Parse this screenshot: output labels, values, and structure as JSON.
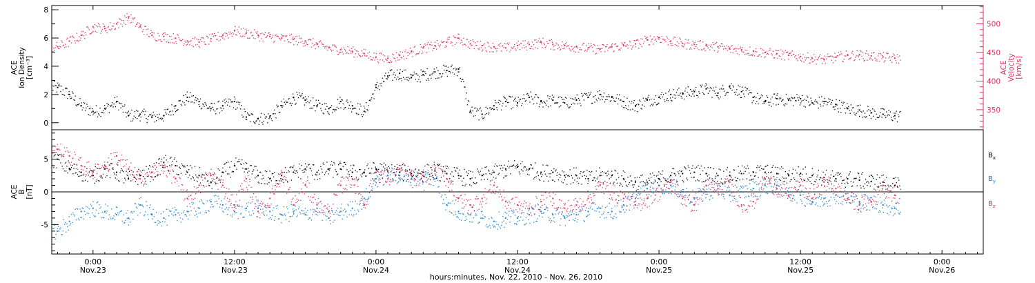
{
  "chart_data": {
    "type": "scatter",
    "xlabel": "hours:minutes, Nov. 22, 2010 - Nov. 26, 2010",
    "x_range_hours": [
      -3.5,
      75.5
    ],
    "x_ticks": [
      {
        "hour": 0,
        "time": "0:00",
        "date": "Nov.23"
      },
      {
        "hour": 12,
        "time": "12:00",
        "date": "Nov.23"
      },
      {
        "hour": 24,
        "time": "0:00",
        "date": "Nov.24"
      },
      {
        "hour": 36,
        "time": "12:00",
        "date": "Nov.24"
      },
      {
        "hour": 48,
        "time": "0:00",
        "date": "Nov.25"
      },
      {
        "hour": 60,
        "time": "12:00",
        "date": "Nov.25"
      },
      {
        "hour": 72,
        "time": "0:00",
        "date": "Nov.26"
      }
    ],
    "data_end_hour": 68.5,
    "panels": [
      {
        "name": "plasma",
        "left_axis": {
          "label_lines": [
            "ACE",
            "Ion Density",
            "[cm⁻³]"
          ],
          "ylim": [
            -0.5,
            8.3
          ],
          "ticks": [
            0,
            2,
            4,
            6,
            8
          ],
          "color": "#000000"
        },
        "right_axis": {
          "label_lines": [
            "ACE",
            "Velocity",
            "[km/s]"
          ],
          "ylim": [
            315,
            532
          ],
          "ticks": [
            350,
            400,
            450,
            500
          ],
          "color": "#e0305a"
        },
        "series": [
          {
            "name": "Ion Density",
            "axis": "left",
            "color": "#000000",
            "x": [
              -3,
              -2,
              -1,
              0,
              1,
              2,
              3,
              4,
              5,
              6,
              7,
              8,
              9,
              10,
              11,
              12,
              13,
              14,
              15,
              16,
              17,
              18,
              19,
              20,
              21,
              22,
              23,
              24,
              25,
              26,
              27,
              28,
              29,
              30,
              31,
              32,
              33,
              34,
              35,
              36,
              37,
              38,
              39,
              40,
              41,
              42,
              43,
              44,
              45,
              46,
              47,
              48,
              49,
              50,
              51,
              52,
              53,
              54,
              55,
              56,
              57,
              58,
              59,
              60,
              61,
              62,
              63,
              64,
              65,
              66,
              67,
              68
            ],
            "y": [
              2.5,
              2.0,
              1.2,
              0.8,
              1.0,
              1.5,
              0.5,
              0.6,
              0.4,
              0.5,
              1.2,
              1.8,
              1.5,
              1.0,
              1.2,
              1.5,
              0.4,
              0.3,
              0.4,
              1.2,
              1.8,
              1.6,
              1.2,
              1.0,
              1.5,
              1.2,
              0.8,
              2.5,
              3.3,
              3.5,
              3.2,
              3.4,
              3.6,
              3.7,
              3.8,
              0.8,
              0.6,
              1.2,
              1.5,
              1.4,
              1.8,
              1.5,
              1.6,
              1.4,
              1.6,
              1.8,
              2.0,
              1.8,
              1.5,
              1.2,
              1.6,
              1.8,
              2.0,
              2.1,
              2.2,
              2.4,
              2.1,
              2.6,
              2.2,
              1.8,
              1.5,
              1.7,
              1.6,
              1.7,
              1.4,
              1.5,
              1.3,
              1.0,
              0.9,
              0.7,
              0.6,
              0.5
            ]
          },
          {
            "name": "Velocity",
            "axis": "right",
            "color": "#e0305a",
            "x": [
              -3,
              -2,
              -1,
              0,
              1,
              2,
              3,
              4,
              5,
              6,
              7,
              8,
              9,
              10,
              11,
              12,
              13,
              14,
              15,
              16,
              17,
              18,
              19,
              20,
              21,
              22,
              23,
              24,
              25,
              26,
              27,
              28,
              29,
              30,
              31,
              32,
              33,
              34,
              35,
              36,
              37,
              38,
              39,
              40,
              41,
              42,
              43,
              44,
              45,
              46,
              47,
              48,
              49,
              50,
              51,
              52,
              53,
              54,
              55,
              56,
              57,
              58,
              59,
              60,
              61,
              62,
              63,
              64,
              65,
              66,
              67,
              68
            ],
            "y": [
              460,
              470,
              480,
              495,
              492,
              500,
              512,
              495,
              480,
              478,
              475,
              470,
              468,
              474,
              480,
              488,
              484,
              480,
              478,
              475,
              473,
              470,
              464,
              458,
              455,
              452,
              448,
              442,
              440,
              445,
              452,
              458,
              462,
              468,
              475,
              465,
              462,
              460,
              458,
              462,
              464,
              468,
              464,
              462,
              460,
              458,
              456,
              460,
              462,
              465,
              472,
              476,
              470,
              466,
              464,
              462,
              460,
              456,
              455,
              452,
              450,
              448,
              445,
              443,
              440,
              438,
              442,
              445,
              446,
              444,
              442,
              440
            ]
          }
        ]
      },
      {
        "name": "magnetic_field",
        "left_axis": {
          "label_lines": [
            "ACE",
            "B",
            "[nT]"
          ],
          "ylim": [
            -9.5,
            9.5
          ],
          "ticks": [
            -5,
            0,
            5
          ],
          "color": "#000000"
        },
        "zero_line": true,
        "series": [
          {
            "name": "Bx",
            "label_base": "B",
            "label_sub": "x",
            "color": "#000000",
            "x": [
              -3,
              -2,
              -1,
              0,
              1,
              2,
              3,
              4,
              5,
              6,
              7,
              8,
              9,
              10,
              11,
              12,
              13,
              14,
              15,
              16,
              17,
              18,
              19,
              20,
              21,
              22,
              23,
              24,
              25,
              26,
              27,
              28,
              29,
              30,
              31,
              32,
              33,
              34,
              35,
              36,
              37,
              38,
              39,
              40,
              41,
              42,
              43,
              44,
              45,
              46,
              47,
              48,
              49,
              50,
              51,
              52,
              53,
              54,
              55,
              56,
              57,
              58,
              59,
              60,
              61,
              62,
              63,
              64,
              65,
              66,
              67,
              68
            ],
            "y": [
              5.0,
              3.5,
              3.0,
              2.5,
              3.5,
              3.0,
              2.0,
              2.5,
              3.0,
              4.5,
              4.0,
              3.0,
              2.5,
              1.5,
              3.0,
              4.0,
              3.5,
              2.5,
              2.0,
              2.5,
              3.0,
              3.5,
              3.0,
              3.5,
              3.5,
              3.0,
              3.0,
              3.5,
              3.2,
              3.0,
              2.8,
              3.0,
              3.2,
              2.8,
              2.5,
              2.0,
              2.5,
              3.0,
              3.5,
              3.8,
              3.5,
              3.0,
              3.0,
              2.5,
              2.5,
              2.0,
              2.5,
              2.5,
              2.0,
              1.5,
              1.5,
              2.0,
              2.5,
              2.8,
              3.0,
              2.8,
              2.5,
              2.5,
              2.8,
              3.0,
              3.0,
              2.8,
              2.5,
              2.8,
              2.5,
              2.2,
              2.0,
              2.0,
              1.8,
              1.6,
              1.5,
              1.0
            ]
          },
          {
            "name": "By",
            "label_base": "B",
            "label_sub": "y",
            "color": "#1a7fd6",
            "x": [
              -3,
              -2,
              -1,
              0,
              1,
              2,
              3,
              4,
              5,
              6,
              7,
              8,
              9,
              10,
              11,
              12,
              13,
              14,
              15,
              16,
              17,
              18,
              19,
              20,
              21,
              22,
              23,
              24,
              25,
              26,
              27,
              28,
              29,
              30,
              31,
              32,
              33,
              34,
              35,
              36,
              37,
              38,
              39,
              40,
              41,
              42,
              43,
              44,
              45,
              46,
              47,
              48,
              49,
              50,
              51,
              52,
              53,
              54,
              55,
              56,
              57,
              58,
              59,
              60,
              61,
              62,
              63,
              64,
              65,
              66,
              67,
              68
            ],
            "y": [
              -6.0,
              -4.5,
              -3.0,
              -2.5,
              -3.0,
              -3.5,
              -4.0,
              -2.0,
              -3.5,
              -4.0,
              -3.5,
              -3.0,
              -2.5,
              -1.5,
              -2.0,
              -3.0,
              -2.5,
              -2.5,
              -3.0,
              -3.5,
              -3.0,
              -3.5,
              -2.5,
              -4.0,
              -3.0,
              -2.5,
              -1.0,
              2.0,
              2.5,
              2.5,
              2.0,
              2.5,
              2.0,
              -2.0,
              -3.0,
              -3.5,
              -4.0,
              -4.5,
              -4.0,
              -4.0,
              -3.5,
              -3.0,
              -3.5,
              -4.0,
              -3.5,
              -3.0,
              -2.5,
              -3.0,
              -2.0,
              -1.0,
              0.5,
              1.0,
              1.0,
              0.0,
              -1.0,
              0.0,
              0.5,
              -0.5,
              0.0,
              0.5,
              1.0,
              1.0,
              0.0,
              -0.5,
              -1.5,
              -1.0,
              -0.5,
              -1.0,
              -1.5,
              -1.5,
              -2.0,
              -2.5
            ]
          },
          {
            "name": "Bz",
            "label_base": "B",
            "label_sub": "z",
            "color": "#e0305a",
            "x": [
              -3,
              -2,
              -1,
              0,
              1,
              2,
              3,
              4,
              5,
              6,
              7,
              8,
              9,
              10,
              11,
              12,
              13,
              14,
              15,
              16,
              17,
              18,
              19,
              20,
              21,
              22,
              23,
              24,
              25,
              26,
              27,
              28,
              29,
              30,
              31,
              32,
              33,
              34,
              35,
              36,
              37,
              38,
              39,
              40,
              41,
              42,
              43,
              44,
              45,
              46,
              47,
              48,
              49,
              50,
              51,
              52,
              53,
              54,
              55,
              56,
              57,
              58,
              59,
              60,
              61,
              62,
              63,
              64,
              65,
              66,
              67,
              68
            ],
            "y": [
              6.5,
              5.5,
              4.0,
              3.0,
              4.0,
              5.5,
              3.5,
              2.0,
              3.0,
              4.0,
              2.0,
              -1.0,
              1.0,
              2.5,
              1.0,
              -2.0,
              2.0,
              -3.0,
              -1.0,
              3.0,
              -2.0,
              1.0,
              -2.0,
              -3.0,
              1.0,
              2.0,
              -2.0,
              3.0,
              2.0,
              3.5,
              2.5,
              1.5,
              3.5,
              2.0,
              -1.0,
              -2.0,
              -1.0,
              1.0,
              -1.5,
              -2.0,
              -2.5,
              -1.5,
              -1.0,
              -2.5,
              -2.0,
              -1.0,
              1.0,
              0.0,
              -1.0,
              -2.0,
              -1.0,
              0.0,
              1.5,
              -1.0,
              -2.0,
              1.0,
              0.5,
              1.5,
              -2.0,
              -1.5,
              2.0,
              0.5,
              -0.5,
              1.0,
              -1.0,
              1.5,
              0.5,
              -1.0,
              -2.0,
              -1.5,
              1.0,
              -0.5
            ]
          }
        ]
      }
    ]
  }
}
